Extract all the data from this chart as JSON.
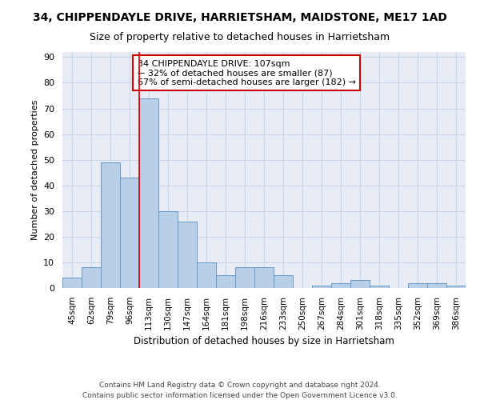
{
  "title": "34, CHIPPENDAYLE DRIVE, HARRIETSHAM, MAIDSTONE, ME17 1AD",
  "subtitle": "Size of property relative to detached houses in Harrietsham",
  "xlabel": "Distribution of detached houses by size in Harrietsham",
  "ylabel": "Number of detached properties",
  "footer1": "Contains HM Land Registry data © Crown copyright and database right 2024.",
  "footer2": "Contains public sector information licensed under the Open Government Licence v3.0.",
  "bar_labels": [
    "45sqm",
    "62sqm",
    "79sqm",
    "96sqm",
    "113sqm",
    "130sqm",
    "147sqm",
    "164sqm",
    "181sqm",
    "198sqm",
    "216sqm",
    "233sqm",
    "250sqm",
    "267sqm",
    "284sqm",
    "301sqm",
    "318sqm",
    "335sqm",
    "352sqm",
    "369sqm",
    "386sqm"
  ],
  "bar_values": [
    4,
    8,
    49,
    43,
    74,
    30,
    26,
    10,
    5,
    8,
    8,
    5,
    0,
    1,
    2,
    3,
    1,
    0,
    2,
    2,
    1
  ],
  "bar_color": "#b8cfe8",
  "bar_edge_color": "#6699cc",
  "vline_x": 3.5,
  "vline_color": "#cc0000",
  "annotation_text": "34 CHIPPENDAYLE DRIVE: 107sqm\n← 32% of detached houses are smaller (87)\n67% of semi-detached houses are larger (182) →",
  "annotation_box_color": "white",
  "annotation_box_edge": "#cc0000",
  "ylim": [
    0,
    92
  ],
  "yticks": [
    0,
    10,
    20,
    30,
    40,
    50,
    60,
    70,
    80,
    90
  ],
  "bg_color": "#e8edf5",
  "grid_color": "#c8d4e8",
  "title_fontsize": 10,
  "subtitle_fontsize": 9,
  "annot_fontsize": 8
}
